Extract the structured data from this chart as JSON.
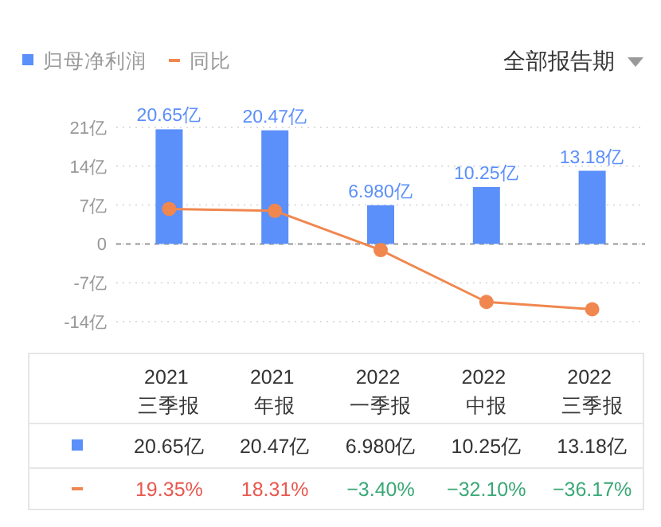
{
  "chart_data": {
    "type": "bar",
    "categories": [
      "2021 三季报",
      "2021 年报",
      "2022 一季报",
      "2022 中报",
      "2022 三季报"
    ],
    "series": [
      {
        "name": "归母净利润",
        "color": "#5b8ff9",
        "values": [
          20.65,
          20.47,
          6.98,
          10.25,
          13.18
        ],
        "value_labels": [
          "20.65亿",
          "20.47亿",
          "6.980亿",
          "10.25亿",
          "13.18亿"
        ]
      },
      {
        "name": "同比",
        "type": "line",
        "axis": "y2",
        "color": "#f0874f",
        "values": [
          19.35,
          18.31,
          -3.4,
          -32.1,
          -36.17
        ],
        "value_labels": [
          "19.35%",
          "18.31%",
          "−3.40%",
          "−32.10%",
          "−36.17%"
        ]
      }
    ],
    "ylim": [
      -14,
      21
    ],
    "yticks": [
      {
        "value": 21,
        "label": "21亿"
      },
      {
        "value": 14,
        "label": "14亿"
      },
      {
        "value": 7,
        "label": "7亿"
      },
      0,
      {
        "value": -7,
        "label": "-7亿"
      },
      {
        "value": -14,
        "label": "-14亿"
      }
    ],
    "ref_lines": [
      {
        "axis": "y",
        "value": 0,
        "color": "#999999",
        "line_style": "dashed"
      }
    ],
    "grid": "y",
    "legend": "top left",
    "marker": "circle",
    "tick_labels": "y",
    "data_labels": false,
    "annotations": [
      "全部报告期"
    ]
  }
}
